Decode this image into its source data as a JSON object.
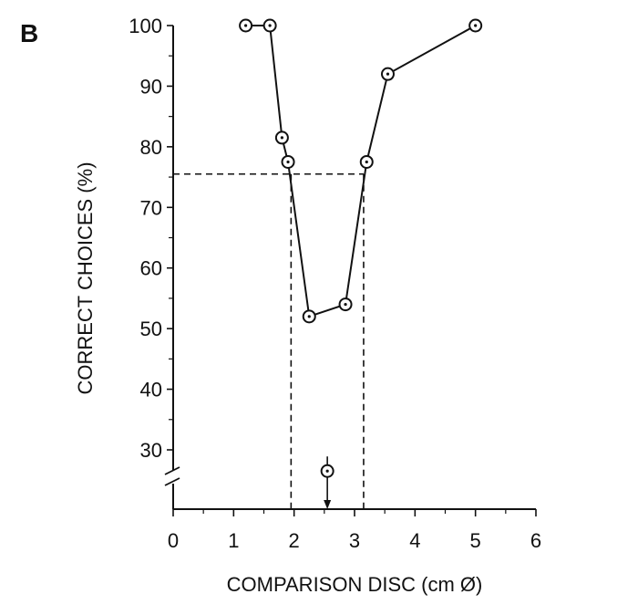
{
  "panel_label": "B",
  "chart_data": {
    "type": "line",
    "title": "",
    "xlabel": "COMPARISON DISC (cm Ø)",
    "ylabel": "CORRECT CHOICES (%)",
    "xlim": [
      0,
      6
    ],
    "ylim": [
      20,
      100
    ],
    "y_axis_break": true,
    "x_ticks": [
      "0",
      "1",
      "2",
      "3",
      "4",
      "5",
      "6"
    ],
    "y_ticks": [
      "30",
      "40",
      "50",
      "60",
      "70",
      "80",
      "90",
      "100"
    ],
    "series": [
      {
        "x": [
          1.2,
          1.6,
          1.8,
          1.9,
          2.25,
          2.85,
          3.2,
          3.55,
          5.0
        ],
        "y": [
          100,
          100,
          81.5,
          77.5,
          52,
          54,
          77.5,
          92,
          100
        ]
      }
    ],
    "training_stimulus": {
      "x": 2.55,
      "y": 26.5
    },
    "threshold_level": 75.5,
    "threshold_x": [
      1.95,
      3.15
    ]
  }
}
